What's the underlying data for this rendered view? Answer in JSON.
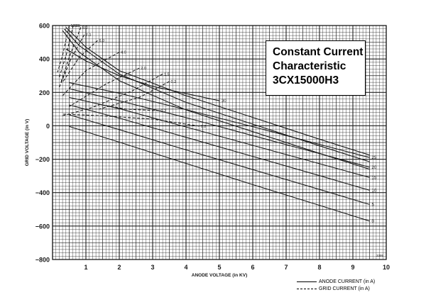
{
  "chart_data": {
    "type": "line",
    "title_lines": [
      "Constant Current",
      "Characteristic",
      "3CX15000H3"
    ],
    "xlabel": "ANODE VOLTAGE (in KV)",
    "ylabel": "GRID VOLTAGE (in V)",
    "xlim": [
      0,
      10
    ],
    "ylim": [
      -800,
      600
    ],
    "x_ticks": [
      "1",
      "2",
      "3",
      "4",
      "5",
      "6",
      "7",
      "8",
      "9",
      "10"
    ],
    "y_ticks": [
      "600",
      "400",
      "200",
      "0",
      "−200",
      "−400",
      "−600",
      "−800"
    ],
    "grid": true,
    "corner_mark": "3395",
    "legend": {
      "placement": "bottom-right",
      "entries": [
        {
          "label": "ANODE CURRENT (in A)",
          "style": "solid"
        },
        {
          "label": "GRID CURRENT (in A)",
          "style": "dashed"
        }
      ]
    },
    "anode_current_series": [
      {
        "label": "0",
        "points": [
          [
            0.5,
            -4
          ],
          [
            2,
            -98
          ],
          [
            4,
            -225
          ],
          [
            6,
            -352
          ],
          [
            8,
            -476
          ],
          [
            9.5,
            -570
          ]
        ]
      },
      {
        "label": "5",
        "points": [
          [
            0.5,
            66
          ],
          [
            2,
            -23
          ],
          [
            4,
            -144
          ],
          [
            6,
            -262
          ],
          [
            8,
            -381
          ],
          [
            9.5,
            -471
          ]
        ]
      },
      {
        "label": "10",
        "points": [
          [
            0.5,
            125
          ],
          [
            2,
            46
          ],
          [
            4,
            -69
          ],
          [
            6,
            -183
          ],
          [
            8,
            -298
          ],
          [
            9.5,
            -386
          ]
        ]
      },
      {
        "label": "15",
        "points": [
          [
            0.5,
            170
          ],
          [
            2,
            103
          ],
          [
            4,
            -7
          ],
          [
            6,
            -117
          ],
          [
            8,
            -227
          ],
          [
            9.5,
            -309
          ]
        ]
      },
      {
        "label": "20",
        "points": [
          [
            0.5,
            222
          ],
          [
            2,
            150
          ],
          [
            4,
            49
          ],
          [
            6,
            -59
          ],
          [
            8,
            -166
          ],
          [
            9.5,
            -248
          ]
        ]
      },
      {
        "label": "25",
        "points": [
          [
            0.5,
            258
          ],
          [
            2,
            195
          ],
          [
            4,
            97
          ],
          [
            6,
            -5
          ],
          [
            8,
            -111
          ],
          [
            9.5,
            -190
          ]
        ]
      },
      {
        "label": "30",
        "points": [
          [
            0.4,
            460
          ],
          [
            1,
            388
          ],
          [
            2,
            300
          ],
          [
            3,
            236
          ],
          [
            5,
            150
          ]
        ]
      }
    ],
    "anode_current_unlabeled": [
      [
        [
          0.4,
          590
        ],
        [
          1,
          470
        ],
        [
          2,
          330
        ],
        [
          4,
          180
        ],
        [
          6,
          50
        ],
        [
          8,
          -80
        ],
        [
          9.5,
          -175
        ]
      ],
      [
        [
          0.35,
          580
        ],
        [
          0.8,
          480
        ],
        [
          2,
          310
        ],
        [
          4,
          140
        ],
        [
          6,
          10
        ],
        [
          8,
          -120
        ],
        [
          9.5,
          -215
        ]
      ],
      [
        [
          0.3,
          570
        ],
        [
          0.8,
          440
        ],
        [
          2,
          270
        ],
        [
          4,
          95
        ],
        [
          6,
          -35
        ],
        [
          8,
          -165
        ],
        [
          9.5,
          -260
        ]
      ]
    ],
    "grid_current_series": [
      {
        "label": "10.0",
        "points": [
          [
            0.5,
            600
          ],
          [
            0.3,
            420
          ],
          [
            0.15,
            320
          ]
        ]
      },
      {
        "label": "9.0",
        "points": [
          [
            0.62,
            600
          ],
          [
            0.42,
            430
          ],
          [
            0.2,
            290
          ]
        ]
      },
      {
        "label": "8.0",
        "points": [
          [
            0.85,
            590
          ],
          [
            0.5,
            410
          ],
          [
            0.25,
            260
          ]
        ]
      },
      {
        "label": "7.0",
        "points": [
          [
            0.95,
            545
          ],
          [
            0.55,
            400
          ],
          [
            0.2,
            230
          ]
        ]
      },
      {
        "label": "6.0",
        "points": [
          [
            1.35,
            510
          ],
          [
            0.8,
            410
          ],
          [
            0.3,
            260
          ]
        ]
      },
      {
        "label": "4.0",
        "points": [
          [
            2.0,
            440
          ],
          [
            1.0,
            330
          ],
          [
            0.3,
            180
          ]
        ]
      },
      {
        "label": "2.0",
        "points": [
          [
            2.6,
            345
          ],
          [
            1.6,
            250
          ],
          [
            0.5,
            115
          ]
        ]
      },
      {
        "label": "1.5",
        "points": [
          [
            3.3,
            310
          ],
          [
            2.4,
            210
          ],
          [
            1.2,
            110
          ],
          [
            0.3,
            60
          ]
        ]
      },
      {
        "label": "0.2",
        "points": [
          [
            3.5,
            265
          ],
          [
            2.6,
            170
          ],
          [
            1.4,
            100
          ]
        ]
      },
      {
        "label": "0.2",
        "points": [
          [
            3.2,
            90
          ],
          [
            2.2,
            100
          ],
          [
            1.5,
            125
          ]
        ]
      },
      {
        "label": "0.2",
        "points": [
          [
            4.4,
            -2
          ],
          [
            3.0,
            40
          ],
          [
            1.5,
            60
          ],
          [
            0.3,
            70
          ]
        ]
      }
    ],
    "colors": {
      "ink": "#1a1a1a",
      "grid": "#222222",
      "background": "#ffffff"
    }
  }
}
